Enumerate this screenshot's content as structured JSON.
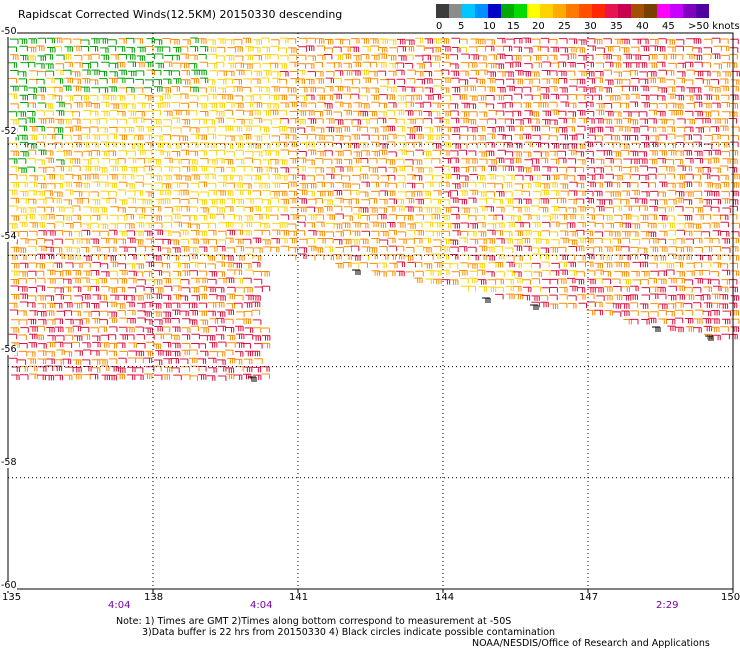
{
  "title": "Rapidscat Corrected Winds(12.5KM) 20150330 descending",
  "legend": {
    "labels": [
      "0",
      "5",
      "10",
      "15",
      "20",
      "25",
      "30",
      "35",
      "40",
      "45",
      ">50 knots"
    ],
    "colors": [
      "#3c3c3c",
      "#8c8c8c",
      "#00c8ff",
      "#0090ff",
      "#0000c8",
      "#00aa00",
      "#00dc00",
      "#ffff00",
      "#ffd200",
      "#ffaa00",
      "#ff7800",
      "#ff5000",
      "#ff2800",
      "#e61450",
      "#c80050",
      "#a05000",
      "#784000",
      "#ff00ff",
      "#c800ff",
      "#8000c0",
      "#5000a0"
    ]
  },
  "axes": {
    "x_ticks": [
      "135",
      "138",
      "141",
      "144",
      "147",
      "150"
    ],
    "y_ticks": [
      "-50",
      "-52",
      "-54",
      "-56",
      "-58",
      "-60"
    ],
    "time_labels": [
      "4:04",
      "4:04",
      "2:29"
    ]
  },
  "map_data": {
    "type": "wind_barb_map",
    "x_range": [
      135,
      150
    ],
    "y_range": [
      -60,
      -50
    ],
    "colors": {
      "green": "#00a000",
      "yellow": "#ffd200",
      "orange": "#ff8c00",
      "red": "#e0103c",
      "black": "#000000"
    }
  },
  "footer": {
    "note1": "Note: 1) Times are GMT 2)Times along bottom correspond to measurement at -50S",
    "note2": "3)Data buffer is 22 hrs from 20150330 4) Black circles indicate possible contamination",
    "credit": "NOAA/NESDIS/Office of Research and Applications"
  }
}
